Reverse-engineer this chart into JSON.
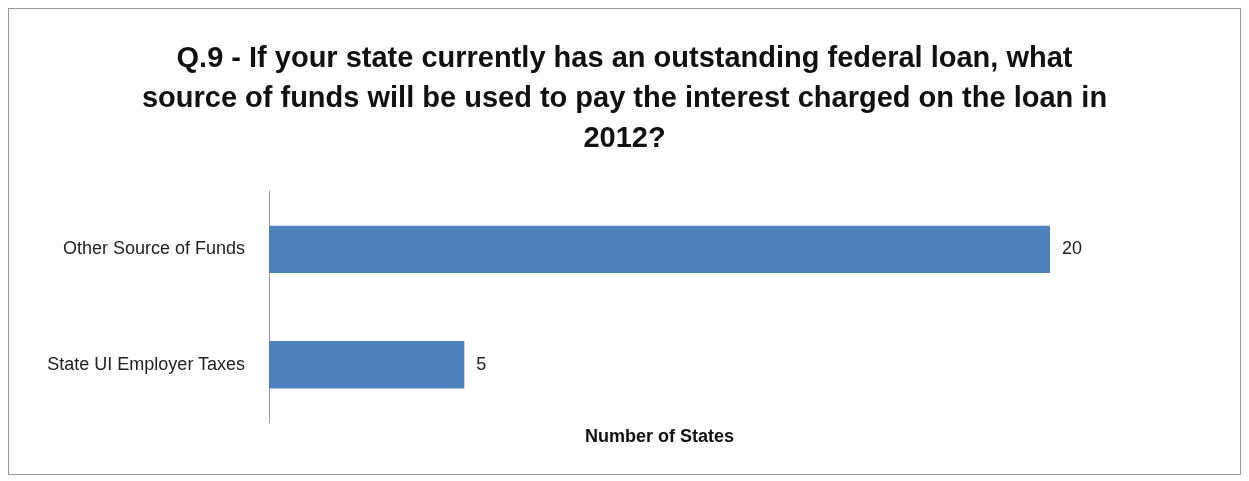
{
  "chart_data": {
    "type": "bar",
    "orientation": "horizontal",
    "title": "Q.9 - If your state currently has an outstanding federal loan, what source of funds will be used to pay the interest charged on the loan in 2012?",
    "xlabel": "Number of States",
    "categories": [
      "Other Source of Funds",
      "State UI Employer Taxes"
    ],
    "values": [
      20,
      5
    ],
    "color": "#4f81bd",
    "data_labels": true,
    "grid": false,
    "legend": false
  }
}
